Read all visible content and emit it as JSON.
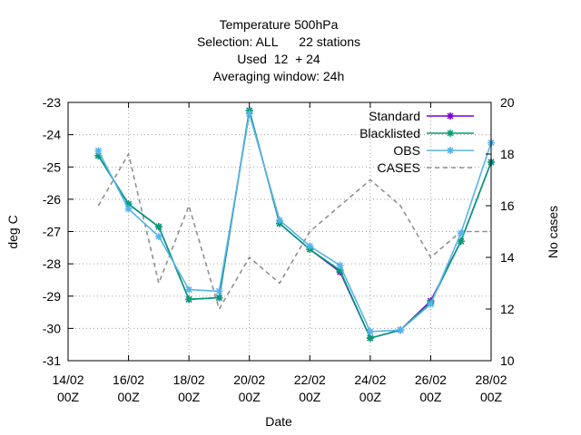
{
  "chart_data": {
    "type": "line",
    "title_lines": [
      "Temperature 500hPa",
      "Selection: ALL      22 stations",
      "Used  12  + 24",
      "Averaging window: 24h"
    ],
    "xlabel": "Date",
    "ylabel": "deg C",
    "y2label": "No cases",
    "xlim": [
      14,
      28
    ],
    "ylim": [
      -31,
      -23
    ],
    "y2lim": [
      10,
      20
    ],
    "x_ticks": [
      {
        "x": 14,
        "line1": "14/02",
        "line2": "00Z"
      },
      {
        "x": 16,
        "line1": "16/02",
        "line2": "00Z"
      },
      {
        "x": 18,
        "line1": "18/02",
        "line2": "00Z"
      },
      {
        "x": 20,
        "line1": "20/02",
        "line2": "00Z"
      },
      {
        "x": 22,
        "line1": "22/02",
        "line2": "00Z"
      },
      {
        "x": 24,
        "line1": "24/02",
        "line2": "00Z"
      },
      {
        "x": 26,
        "line1": "26/02",
        "line2": "00Z"
      },
      {
        "x": 28,
        "line1": "28/02",
        "line2": "00Z"
      }
    ],
    "y_ticks": [
      -31,
      -30,
      -29,
      -28,
      -27,
      -26,
      -25,
      -24,
      -23
    ],
    "y2_ticks": [
      10,
      12,
      14,
      16,
      18,
      20
    ],
    "grid": true,
    "legend_position": "top-right",
    "x": [
      15,
      16,
      17,
      18,
      19,
      20,
      21,
      22,
      23,
      24,
      25,
      26,
      27,
      28
    ],
    "series": [
      {
        "name": "Standard",
        "color": "#7b00d4",
        "axis": "left",
        "dash": false,
        "marker": true,
        "values": [
          -24.65,
          -26.15,
          -26.85,
          -29.1,
          -29.05,
          -23.25,
          -26.75,
          -27.55,
          -28.25,
          -30.3,
          -30.05,
          -29.15,
          -27.3,
          -24.85
        ]
      },
      {
        "name": "Blacklisted",
        "color": "#009e73",
        "axis": "left",
        "dash": false,
        "marker": true,
        "values": [
          -24.65,
          -26.15,
          -26.85,
          -29.1,
          -29.05,
          -23.25,
          -26.75,
          -27.55,
          -28.2,
          -30.3,
          -30.05,
          -29.2,
          -27.3,
          -24.85
        ]
      },
      {
        "name": "OBS",
        "color": "#56b4e9",
        "axis": "left",
        "dash": false,
        "marker": true,
        "values": [
          -24.5,
          -26.3,
          -27.15,
          -28.8,
          -28.85,
          -23.35,
          -26.65,
          -27.45,
          -28.05,
          -30.1,
          -30.05,
          -29.25,
          -27.05,
          -24.25
        ]
      },
      {
        "name": "CASES",
        "color": "#909090",
        "axis": "right",
        "dash": true,
        "marker": false,
        "values": [
          16,
          18,
          13,
          16,
          12,
          14,
          13,
          15,
          16,
          17,
          16,
          14,
          15,
          15
        ]
      }
    ]
  }
}
